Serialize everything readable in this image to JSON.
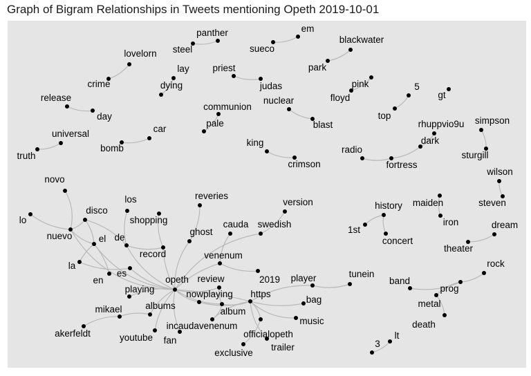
{
  "title": "Graph of Bigram Relationships in Tweets mentioning Opeth 2019-10-01",
  "chart_data": {
    "type": "network",
    "title": "Graph of Bigram Relationships in Tweets mentioning Opeth 2019-10-01",
    "background": "#e5e5e5",
    "edge_color": "#b8b8b8",
    "node_color": "#000000",
    "nodes": [
      "panther",
      "steel",
      "em",
      "sueco",
      "blackwater",
      "park",
      "lovelorn",
      "crime",
      "lay",
      "dying",
      "priest",
      "judas",
      "pink",
      "floyd",
      "5",
      "top",
      "gt",
      "release",
      "day",
      "communion",
      "pale",
      "nuclear",
      "blast",
      "car",
      "bomb",
      "universal",
      "truth",
      "simpson",
      "sturgill",
      "rhuppvio9u",
      "dark",
      "fortress",
      "radio",
      "king",
      "crimson",
      "wilson",
      "steven",
      "novo",
      "lo",
      "disco",
      "nuevo",
      "los",
      "el",
      "de",
      "shopping",
      "la",
      "record",
      "en",
      "es",
      "reveries",
      "ghost",
      "version",
      "swedish",
      "cauda",
      "venenum",
      "2019",
      "history",
      "1st",
      "concert",
      "maiden",
      "iron",
      "dream",
      "theater",
      "rock",
      "prog",
      "band",
      "metal",
      "death",
      "opeth",
      "review",
      "player",
      "tunein",
      "playing",
      "nowplaying",
      "https",
      "bag",
      "albums",
      "mikael",
      "akerfeldt",
      "album",
      "incaudavenenum",
      "music",
      "youtube",
      "fan",
      "officialopeth",
      "exclusive",
      "trailer",
      "lt",
      "3"
    ],
    "edges": [
      [
        "steel",
        "panther"
      ],
      [
        "sueco",
        "em"
      ],
      [
        "park",
        "blackwater"
      ],
      [
        "crime",
        "lovelorn"
      ],
      [
        "dying",
        "lay"
      ],
      [
        "priest",
        "judas"
      ],
      [
        "floyd",
        "pink"
      ],
      [
        "top",
        "5"
      ],
      [
        "release",
        "day"
      ],
      [
        "pale",
        "communion"
      ],
      [
        "nuclear",
        "blast"
      ],
      [
        "bomb",
        "car"
      ],
      [
        "truth",
        "universal"
      ],
      [
        "sturgill",
        "simpson"
      ],
      [
        "dark",
        "rhuppvio9u"
      ],
      [
        "fortress",
        "dark"
      ],
      [
        "radio",
        "fortress"
      ],
      [
        "king",
        "crimson"
      ],
      [
        "wilson",
        "steven"
      ],
      [
        "history",
        "1st"
      ],
      [
        "history",
        "concert"
      ],
      [
        "maiden",
        "iron"
      ],
      [
        "theater",
        "dream"
      ],
      [
        "prog",
        "rock"
      ],
      [
        "band",
        "prog"
      ],
      [
        "prog",
        "metal"
      ],
      [
        "death",
        "metal"
      ],
      [
        "3",
        "lt"
      ],
      [
        "nuevo",
        "lo"
      ],
      [
        "nuevo",
        "novo"
      ],
      [
        "nuevo",
        "disco"
      ],
      [
        "el",
        "disco"
      ],
      [
        "de",
        "disco"
      ],
      [
        "nuevo",
        "opeth"
      ],
      [
        "nuevo",
        "el"
      ],
      [
        "los",
        "de"
      ],
      [
        "de",
        "opeth"
      ],
      [
        "de",
        "record"
      ],
      [
        "el",
        "la"
      ],
      [
        "el",
        "en"
      ],
      [
        "la",
        "es"
      ],
      [
        "el",
        "opeth"
      ],
      [
        "es",
        "opeth"
      ],
      [
        "shopping",
        "record"
      ],
      [
        "record",
        "opeth"
      ],
      [
        "ghost",
        "reveries"
      ],
      [
        "ghost",
        "opeth"
      ],
      [
        "swedish",
        "version"
      ],
      [
        "swedish",
        "opeth"
      ],
      [
        "cauda",
        "venenum"
      ],
      [
        "venenum",
        "opeth"
      ],
      [
        "venenum",
        "2019"
      ],
      [
        "opeth",
        "review"
      ],
      [
        "opeth",
        "playing"
      ],
      [
        "opeth",
        "nowplaying"
      ],
      [
        "opeth",
        "albums"
      ],
      [
        "albums",
        "mikael"
      ],
      [
        "mikael",
        "akerfeldt"
      ],
      [
        "opeth",
        "youtube"
      ],
      [
        "opeth",
        "fan"
      ],
      [
        "opeth",
        "https"
      ],
      [
        "opeth",
        "album"
      ],
      [
        "review",
        "album"
      ],
      [
        "nowplaying",
        "https"
      ],
      [
        "album",
        "https"
      ],
      [
        "player",
        "https"
      ],
      [
        "player",
        "tunein"
      ],
      [
        "https",
        "bag"
      ],
      [
        "https",
        "music"
      ],
      [
        "https",
        "incaudavenenum"
      ],
      [
        "https",
        "officialopeth"
      ],
      [
        "https",
        "trailer"
      ],
      [
        "exclusive",
        "officialopeth"
      ],
      [
        "album",
        "incaudavenenum"
      ]
    ]
  }
}
